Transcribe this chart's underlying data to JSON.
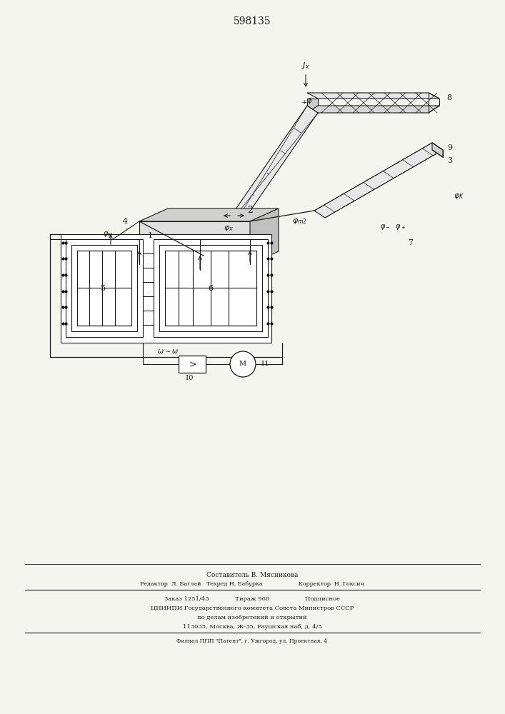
{
  "patent_number": "598135",
  "bg": "#f5f5f0",
  "lc": "#1a1a1a",
  "fig_w": 7.07,
  "fig_h": 10.0,
  "dpi": 100,
  "footer": [
    "Составитель В. Мясникова",
    "Редактор  Л. Баглай   Техред Н. Бабурка                    Корректор  Н. Гоксич",
    "Заказ 1251/43              Тираж 960                   Подписное",
    "ЦНИИПИ Государственного комитета Совета Министров СССР",
    "по делам изобретений и открытий",
    "113035, Москва, Ж-35, Раушская наб, д. 4/5",
    "Филиал ППП \"Патент\", г. Ужгород, ул. Проектная, 4"
  ]
}
